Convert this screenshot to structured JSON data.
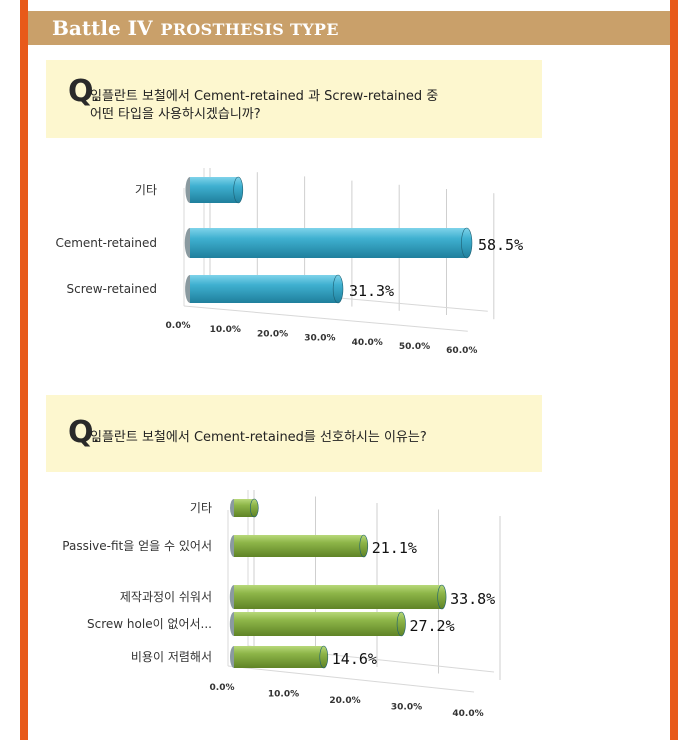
{
  "header": {
    "title": "Battle IV",
    "subtitle": "PROSTHESIS TYPE"
  },
  "colors": {
    "border": "#e85a1a",
    "header_bg": "#c9a06a",
    "question_bg": "#fdf7cf",
    "bar_blue": "#35a8c8",
    "bar_green": "#8db548"
  },
  "question1": {
    "mark": "Q",
    "dot": ".",
    "line1": "임플란트 보철에서 Cement-retained 과 Screw-retained 중",
    "line2": "어떤 타입을 사용하시겠습니까?"
  },
  "question2": {
    "mark": "Q",
    "dot": ".",
    "line1": "임플란트 보철에서 Cement-retained를 선호하시는 이유는?"
  },
  "chart_data": [
    {
      "type": "bar",
      "orientation": "horizontal",
      "style": "3d-cylinder",
      "categories": [
        "기타",
        "Cement-retained",
        "Screw-retained"
      ],
      "values": [
        10.2,
        58.5,
        31.3
      ],
      "value_labels": [
        "",
        "58.5%",
        "31.3%"
      ],
      "tick_labels": [
        "0.0%",
        "10.0%",
        "20.0%",
        "30.0%",
        "40.0%",
        "50.0%",
        "60.0%"
      ],
      "xlim": [
        0,
        60
      ],
      "grid": true,
      "color": "#35a8c8"
    },
    {
      "type": "bar",
      "orientation": "horizontal",
      "style": "3d-cylinder",
      "categories": [
        "기타",
        "Passive-fit을 얻을 수 있어서",
        "제작과정이 쉬워서",
        "Screw hole이 없어서...",
        "비용이 저렴해서"
      ],
      "values": [
        3.3,
        21.1,
        33.8,
        27.2,
        14.6
      ],
      "value_labels": [
        "",
        "21.1%",
        "33.8%",
        "27.2%",
        "14.6%"
      ],
      "tick_labels": [
        "0.0%",
        "10.0%",
        "20.0%",
        "30.0%",
        "40.0%"
      ],
      "xlim": [
        0,
        40
      ],
      "grid": true,
      "color": "#8db548"
    }
  ]
}
